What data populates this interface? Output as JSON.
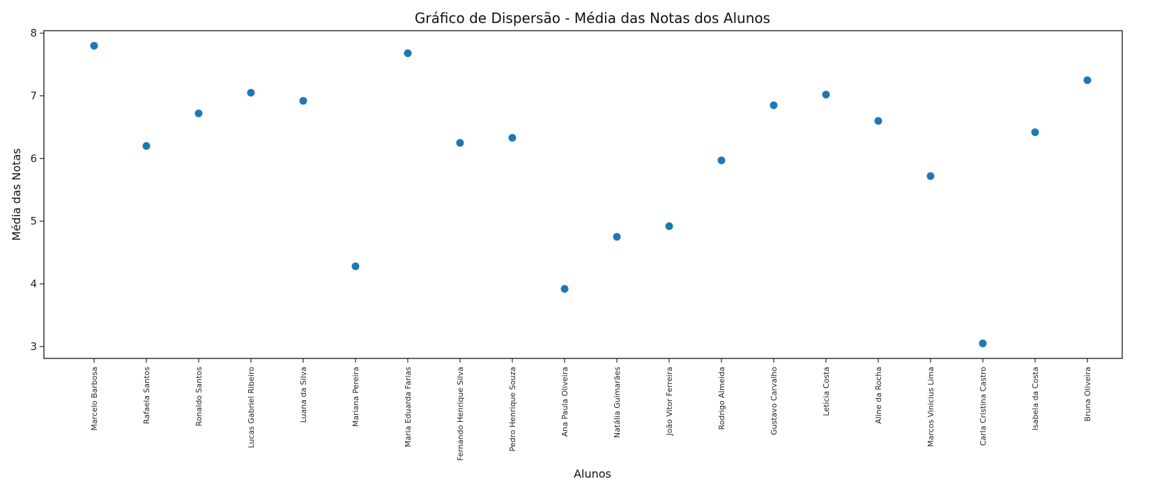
{
  "chart_data": {
    "type": "scatter",
    "title": "Gráfico de Dispersão - Média das Notas dos Alunos",
    "xlabel": "Alunos",
    "ylabel": "Média das Notas",
    "ylim": [
      2.81,
      8.04
    ],
    "yticks": [
      "3",
      "4",
      "5",
      "6",
      "7",
      "8"
    ],
    "grid": false,
    "marker_color": "#1f77b4",
    "categories": [
      "Marcelo Barbosa",
      "Rafaela Santos",
      "Ronaldo Santos",
      "Lucas Gabriel Ribeiro",
      "Luana da Silva",
      "Mariana Pereira",
      "Maria Eduarda Farias",
      "Fernando Henrique Silva",
      "Pedro Henrique Souza",
      "Ana Paula Oliveira",
      "Natália Guimarães",
      "João Vitor Ferreira",
      "Rodrigo Almeida",
      "Gustavo Carvalho",
      "Leticia Costa",
      "Aline da Rocha",
      "Marcos Vinicius Lima",
      "Carla Cristina Castro",
      "Isabela da Costa",
      "Bruna Oliveira"
    ],
    "values": [
      7.8,
      6.2,
      6.72,
      7.05,
      6.92,
      4.28,
      7.68,
      6.25,
      6.33,
      3.92,
      4.75,
      4.92,
      5.97,
      6.85,
      7.02,
      6.6,
      5.72,
      3.05,
      6.42,
      7.25
    ]
  }
}
